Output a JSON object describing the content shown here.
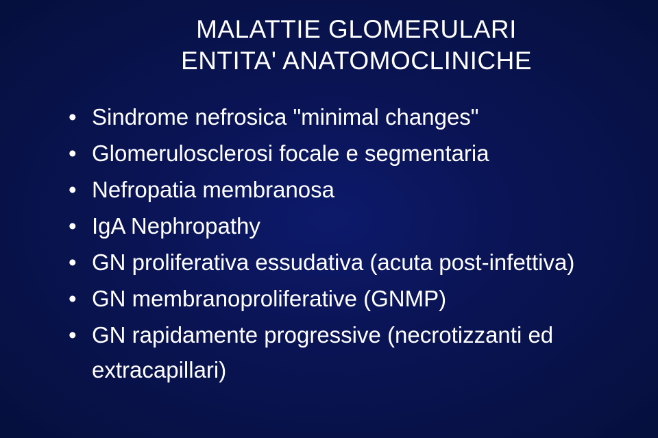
{
  "slide": {
    "title_line1": "MALATTIE GLOMERULARI",
    "title_line2": "ENTITA' ANATOMOCLINICHE",
    "bullets": [
      "Sindrome nefrosica \"minimal changes\"",
      "Glomerulosclerosi focale e segmentaria",
      "Nefropatia membranosa",
      "IgA Nephropathy",
      "GN proliferativa essudativa (acuta post-infettiva)",
      "GN membranoproliferative (GNMP)",
      "GN rapidamente progressive (necrotizzanti ed extracapillari)"
    ],
    "style": {
      "background_gradient_center": "#0d1a6b",
      "background_gradient_mid": "#0a1455",
      "background_gradient_edge": "#06103d",
      "text_color": "#ffffff",
      "title_fontsize_pt": 28,
      "bullet_fontsize_pt": 25,
      "font_family": "Arial"
    }
  }
}
